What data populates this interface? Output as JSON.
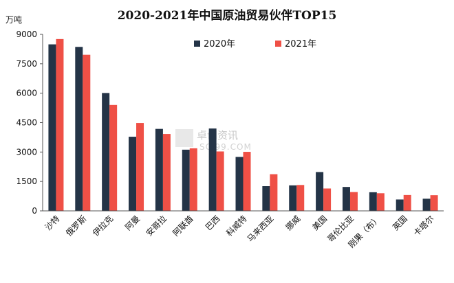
{
  "chart_data": {
    "type": "bar",
    "title": "2020-2021年中国原油贸易伙伴TOP15",
    "ylabel": "万吨",
    "ylim": [
      0,
      9000
    ],
    "yticks": [
      0,
      1500,
      3000,
      4500,
      6000,
      7500,
      9000
    ],
    "grid": false,
    "legend_position": "top-right",
    "categories": [
      "沙特",
      "俄罗斯",
      "伊拉克",
      "阿曼",
      "安哥拉",
      "阿联酋",
      "巴西",
      "科威特",
      "马来西亚",
      "挪威",
      "美国",
      "哥伦比亚",
      "刚果（布）",
      "英国",
      "卡塔尔"
    ],
    "series": [
      {
        "name": "2020年",
        "color": "#243447",
        "values": [
          8490,
          8360,
          6010,
          3780,
          4180,
          3120,
          4200,
          2750,
          1260,
          1300,
          1980,
          1220,
          950,
          580,
          620
        ]
      },
      {
        "name": "2021年",
        "color": "#ef5046",
        "values": [
          8760,
          7960,
          5400,
          4480,
          3920,
          3190,
          3030,
          3010,
          1870,
          1320,
          1140,
          960,
          900,
          810,
          800
        ]
      }
    ]
  },
  "watermark": {
    "text": "卓创资讯",
    "subtext": "SCI99.COM"
  }
}
